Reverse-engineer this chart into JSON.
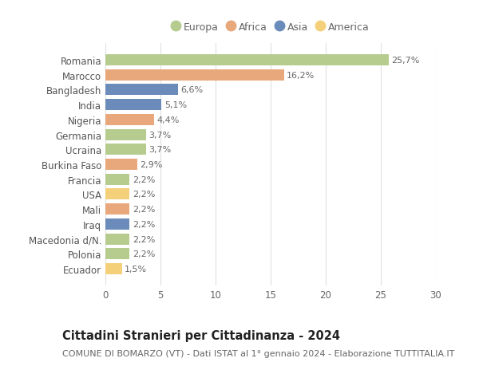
{
  "categories": [
    "Romania",
    "Marocco",
    "Bangladesh",
    "India",
    "Nigeria",
    "Germania",
    "Ucraina",
    "Burkina Faso",
    "Francia",
    "USA",
    "Mali",
    "Iraq",
    "Macedonia d/N.",
    "Polonia",
    "Ecuador"
  ],
  "values": [
    25.7,
    16.2,
    6.6,
    5.1,
    4.4,
    3.7,
    3.7,
    2.9,
    2.2,
    2.2,
    2.2,
    2.2,
    2.2,
    2.2,
    1.5
  ],
  "labels": [
    "25,7%",
    "16,2%",
    "6,6%",
    "5,1%",
    "4,4%",
    "3,7%",
    "3,7%",
    "2,9%",
    "2,2%",
    "2,2%",
    "2,2%",
    "2,2%",
    "2,2%",
    "2,2%",
    "1,5%"
  ],
  "continents": [
    "Europa",
    "Africa",
    "Asia",
    "Asia",
    "Africa",
    "Europa",
    "Europa",
    "Africa",
    "Europa",
    "America",
    "Africa",
    "Asia",
    "Europa",
    "Europa",
    "America"
  ],
  "continent_colors": {
    "Europa": "#b5cc8e",
    "Africa": "#e8a87c",
    "Asia": "#6b8cba",
    "America": "#f5d07a"
  },
  "legend_order": [
    "Europa",
    "Africa",
    "Asia",
    "America"
  ],
  "title": "Cittadini Stranieri per Cittadinanza - 2024",
  "subtitle": "COMUNE DI BOMARZO (VT) - Dati ISTAT al 1° gennaio 2024 - Elaborazione TUTTITALIA.IT",
  "xlim": [
    0,
    30
  ],
  "xticks": [
    0,
    5,
    10,
    15,
    20,
    25,
    30
  ],
  "background_color": "#ffffff",
  "grid_color": "#e0e0e0",
  "bar_height": 0.75,
  "label_fontsize": 8,
  "tick_fontsize": 8.5,
  "title_fontsize": 10.5,
  "subtitle_fontsize": 8
}
